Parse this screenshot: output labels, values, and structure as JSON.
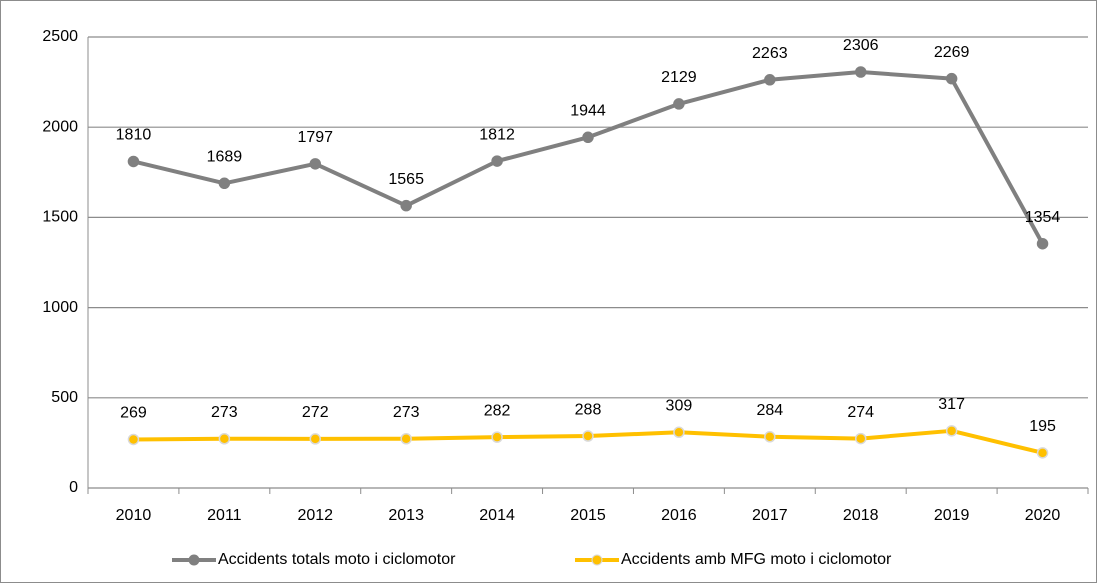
{
  "chart_data": {
    "type": "line",
    "categories": [
      "2010",
      "2011",
      "2012",
      "2013",
      "2014",
      "2015",
      "2016",
      "2017",
      "2018",
      "2019",
      "2020"
    ],
    "series": [
      {
        "name": "Accidents totals moto i ciclomotor",
        "color": "#808080",
        "values": [
          1810,
          1689,
          1797,
          1565,
          1812,
          1944,
          2129,
          2263,
          2306,
          2269,
          1354
        ]
      },
      {
        "name": "Accidents amb MFG moto i ciclomotor",
        "color": "#ffc000",
        "values": [
          269,
          273,
          272,
          273,
          282,
          288,
          309,
          284,
          274,
          317,
          195
        ]
      }
    ],
    "ylim": [
      0,
      2500
    ],
    "yticks": [
      0,
      500,
      1000,
      1500,
      2000,
      2500
    ],
    "grid": true,
    "legend": "bottom"
  }
}
